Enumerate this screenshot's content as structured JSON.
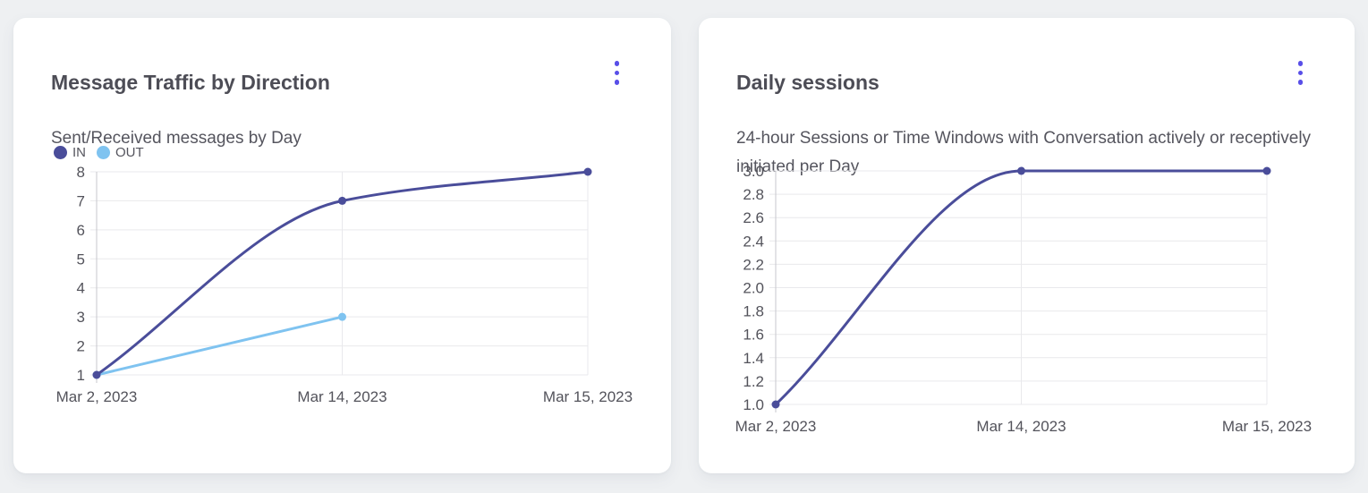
{
  "colors": {
    "background": "#eef0f2",
    "card": "#ffffff",
    "accent": "#584ee8",
    "grid": "#e9e9ec",
    "axis": "#c7c7cd",
    "title_text": "#4d4d56",
    "muted_text": "#55555e",
    "tick_text": "#53535b",
    "series_in": "#4a4d9a",
    "series_out": "#7fc3f0"
  },
  "icons": {
    "card_menu": "kebab-menu-icon"
  },
  "chart_data": [
    {
      "type": "line",
      "title": "Message Traffic by Direction",
      "subtitle": "Sent/Received messages by Day",
      "categories": [
        "Mar 2, 2023",
        "Mar 14, 2023",
        "Mar 15, 2023"
      ],
      "series": [
        {
          "name": "IN",
          "values": [
            1,
            7,
            8
          ],
          "color": "#4a4d9a"
        },
        {
          "name": "OUT",
          "values": [
            1,
            3,
            null
          ],
          "color": "#7fc3f0"
        }
      ],
      "xlabel": "",
      "ylabel": "",
      "ylim": [
        1,
        8
      ],
      "yticks": {
        "values": [
          1,
          2,
          3,
          4,
          5,
          6,
          7,
          8
        ],
        "labels": [
          "1",
          "2",
          "3",
          "4",
          "5",
          "6",
          "7",
          "8"
        ]
      },
      "grid": true,
      "legend_position": "top-left"
    },
    {
      "type": "line",
      "title": "Daily sessions",
      "subtitle": "24-hour Sessions or Time Windows with Conversation actively or receptively initiated per Day",
      "categories": [
        "Mar 2, 2023",
        "Mar 14, 2023",
        "Mar 15, 2023"
      ],
      "series": [
        {
          "values": [
            1,
            3,
            3
          ],
          "color": "#4a4d9a"
        }
      ],
      "xlabel": "",
      "ylabel": "",
      "ylim": [
        1,
        3
      ],
      "yticks": {
        "values": [
          1.0,
          1.2,
          1.4,
          1.6,
          1.8,
          2.0,
          2.2,
          2.4,
          2.6,
          2.8,
          3.0
        ],
        "labels": [
          "1.0",
          "1.2",
          "1.4",
          "1.6",
          "1.8",
          "2.0",
          "2.2",
          "2.4",
          "2.6",
          "2.8",
          "3.0"
        ]
      },
      "grid": true,
      "legend_position": "none"
    }
  ]
}
